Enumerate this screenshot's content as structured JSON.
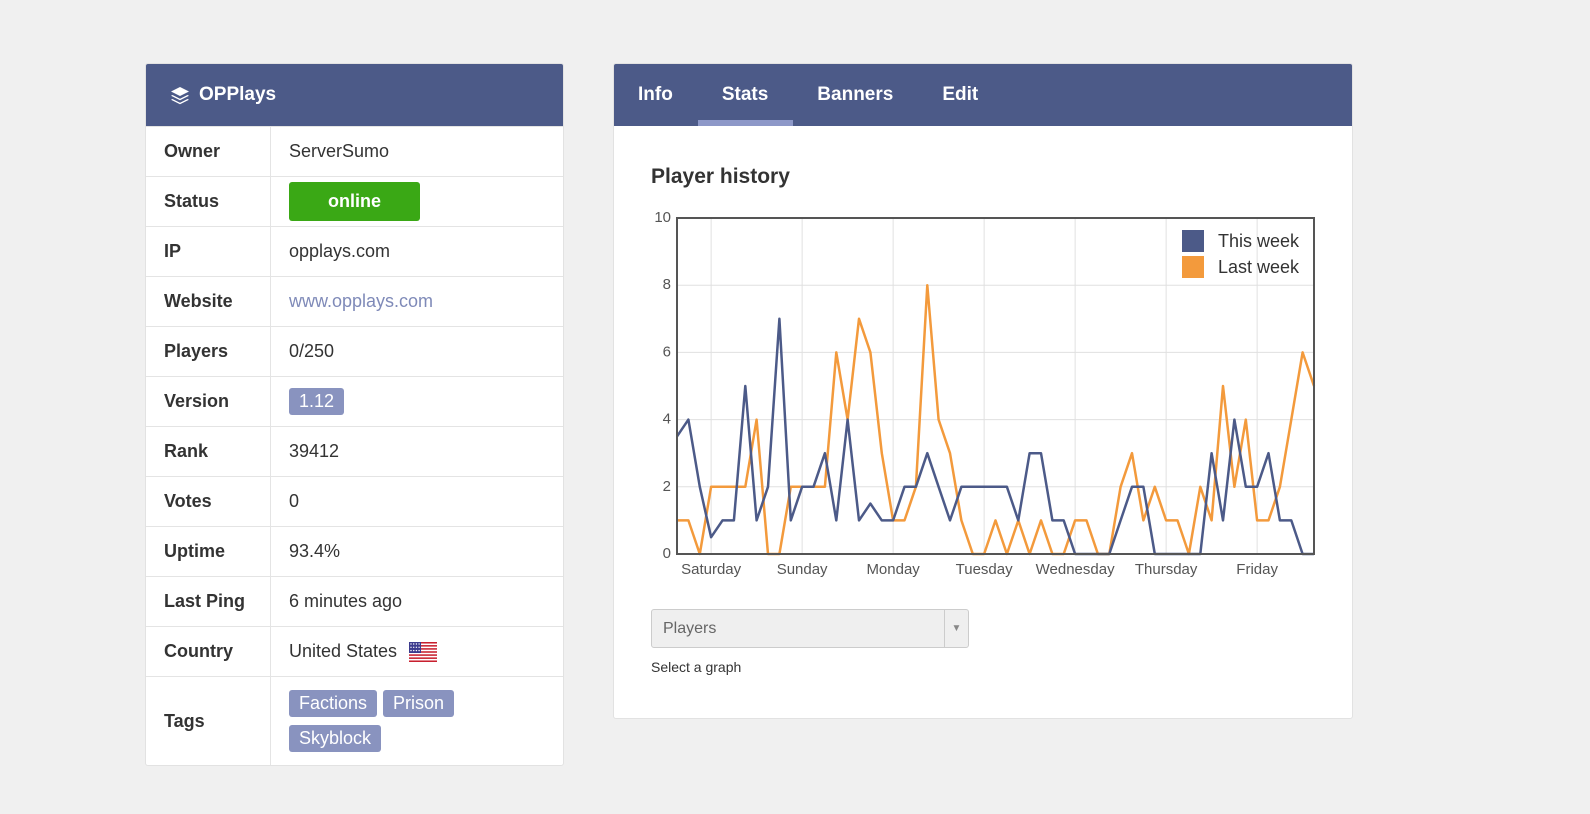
{
  "server": {
    "name": "OPPlays",
    "rows": [
      {
        "label": "Owner",
        "value": "ServerSumo",
        "style": "text"
      },
      {
        "label": "Status",
        "value": "online",
        "style": "badge-green"
      },
      {
        "label": "IP",
        "value": "opplays.com",
        "style": "text"
      },
      {
        "label": "Website",
        "value": "www.opplays.com",
        "style": "link"
      },
      {
        "label": "Players",
        "value": "0/250",
        "style": "text"
      },
      {
        "label": "Version",
        "value": "1.12",
        "style": "badge"
      },
      {
        "label": "Rank",
        "value": "39412",
        "style": "text"
      },
      {
        "label": "Votes",
        "value": "0",
        "style": "text"
      },
      {
        "label": "Uptime",
        "value": "93.4%",
        "style": "text"
      },
      {
        "label": "Last Ping",
        "value": "6 minutes ago",
        "style": "text"
      },
      {
        "label": "Country",
        "value": "United States",
        "style": "flag"
      },
      {
        "label": "Tags",
        "value": [
          "Factions",
          "Prison",
          "Skyblock"
        ],
        "style": "tags"
      }
    ]
  },
  "tabs": [
    {
      "label": "Info",
      "active": false
    },
    {
      "label": "Stats",
      "active": true
    },
    {
      "label": "Banners",
      "active": false
    },
    {
      "label": "Edit",
      "active": false
    }
  ],
  "chart_data": {
    "type": "line",
    "title": "Player history",
    "x": [
      0,
      3,
      6,
      9,
      12,
      15,
      18,
      21,
      24,
      27,
      30,
      33,
      36,
      39,
      42,
      45,
      48,
      51,
      54,
      57,
      60,
      63,
      66,
      69,
      72,
      75,
      78,
      81,
      84,
      87,
      90,
      93,
      96,
      99,
      102,
      105,
      108,
      111,
      114,
      117,
      120,
      123,
      126,
      129,
      132,
      135,
      138,
      141,
      144,
      147,
      150,
      153,
      156,
      159,
      162,
      165,
      168
    ],
    "series": [
      {
        "name": "This week",
        "color": "#4c5a88",
        "values": [
          3.5,
          4,
          2,
          0.5,
          1,
          1,
          5,
          1,
          2,
          7,
          1,
          2,
          2,
          3,
          1,
          4,
          1,
          1.5,
          1,
          1,
          2,
          2,
          3,
          2,
          1,
          2,
          2,
          2,
          2,
          2,
          1,
          3,
          3,
          1,
          1,
          0,
          0,
          0,
          0,
          1,
          2,
          2,
          0,
          0,
          0,
          0,
          0,
          3,
          1,
          4,
          2,
          2,
          3,
          1,
          1,
          0,
          0
        ]
      },
      {
        "name": "Last week",
        "color": "#f39a3c",
        "values": [
          1,
          1,
          0,
          2,
          2,
          2,
          2,
          4,
          0,
          0,
          2,
          2,
          2,
          2,
          6,
          4,
          7,
          6,
          3,
          1,
          1,
          2,
          8,
          4,
          3,
          1,
          0,
          0,
          1,
          0,
          1,
          0,
          1,
          0,
          0,
          1,
          1,
          0,
          0,
          2,
          3,
          1,
          2,
          1,
          1,
          0,
          2,
          1,
          5,
          2,
          4,
          1,
          1,
          2,
          4,
          6,
          5
        ]
      }
    ],
    "xlim": [
      0,
      168
    ],
    "xticks": [
      {
        "value": 9,
        "label": "Saturday"
      },
      {
        "value": 33,
        "label": "Sunday"
      },
      {
        "value": 57,
        "label": "Monday"
      },
      {
        "value": 81,
        "label": "Tuesday"
      },
      {
        "value": 105,
        "label": "Wednesday"
      },
      {
        "value": 129,
        "label": "Thursday"
      },
      {
        "value": 153,
        "label": "Friday"
      }
    ],
    "ylim": [
      0,
      10
    ],
    "yticks": [
      0,
      2,
      4,
      6,
      8,
      10
    ],
    "grid": true,
    "legend": "top-right"
  },
  "select": {
    "value": "Players",
    "help": "Select a graph"
  }
}
